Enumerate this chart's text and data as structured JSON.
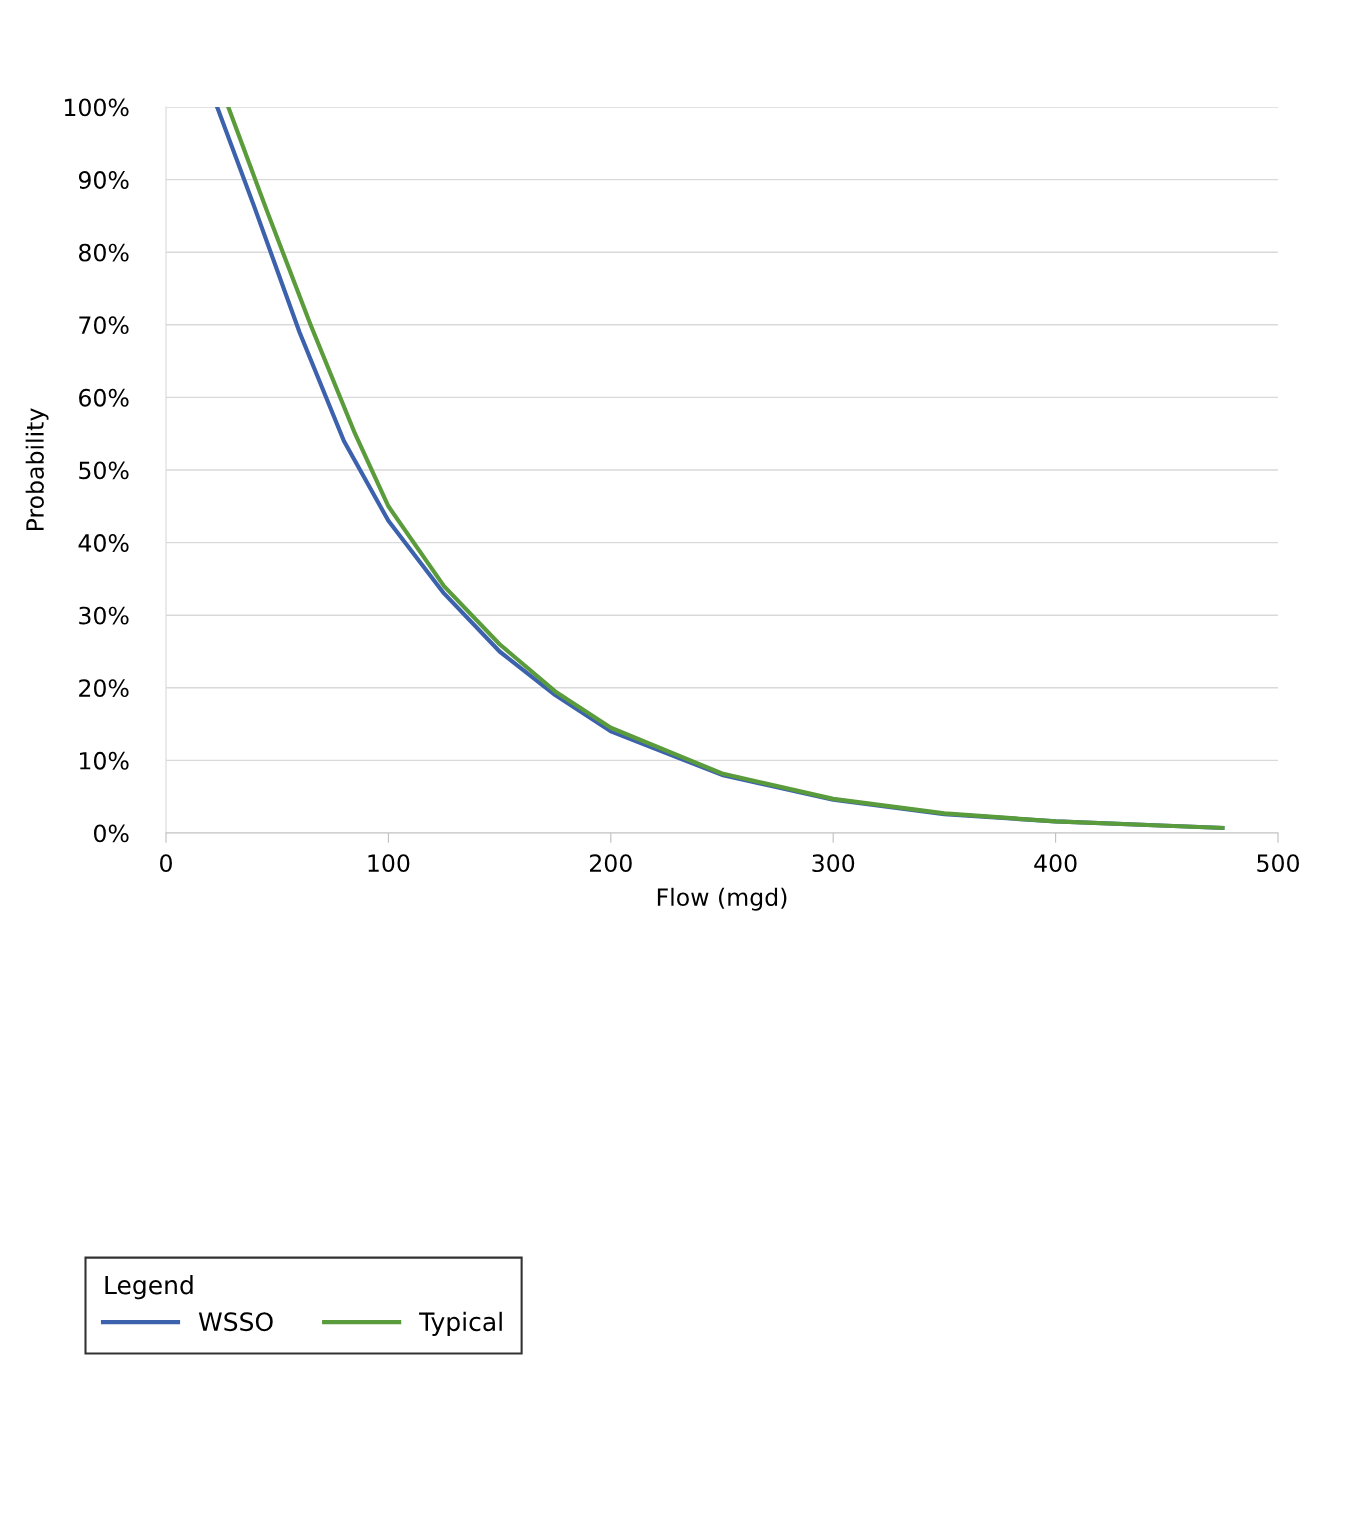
{
  "chart_data": {
    "type": "line",
    "xlabel": "Flow (mgd)",
    "ylabel": "Probability",
    "legend_title": "Legend",
    "series": [
      {
        "name": "WSSO",
        "color": "#3d62ad",
        "x": [
          23,
          40,
          60,
          80,
          100,
          125,
          150,
          175,
          200,
          250,
          300,
          350,
          400,
          450,
          475
        ],
        "values": [
          100,
          86,
          69,
          54,
          43,
          33,
          25,
          19,
          14,
          8,
          4.6,
          2.6,
          1.6,
          1.0,
          0.7
        ]
      },
      {
        "name": "Typical",
        "color": "#5a9b3c",
        "x": [
          28,
          45,
          65,
          85,
          100,
          125,
          150,
          175,
          200,
          250,
          300,
          350,
          400,
          450,
          475
        ],
        "values": [
          100,
          86,
          70,
          55,
          45,
          34,
          26,
          19.5,
          14.5,
          8.2,
          4.7,
          2.7,
          1.6,
          1.0,
          0.7
        ]
      }
    ],
    "xlim": [
      0,
      500
    ],
    "xticks": [
      0,
      100,
      200,
      300,
      400,
      500
    ],
    "ylim": [
      0,
      100
    ],
    "yticks": [
      {
        "value": 0,
        "label": "0%"
      },
      {
        "value": 10,
        "label": "10%"
      },
      {
        "value": 20,
        "label": "20%"
      },
      {
        "value": 30,
        "label": "30%"
      },
      {
        "value": 40,
        "label": "40%"
      },
      {
        "value": 50,
        "label": "50%"
      },
      {
        "value": 60,
        "label": "60%"
      },
      {
        "value": 70,
        "label": "70%"
      },
      {
        "value": 80,
        "label": "80%"
      },
      {
        "value": 90,
        "label": "90%"
      },
      {
        "value": 100,
        "label": "100%"
      }
    ],
    "grid": "y",
    "legend": "bottom left",
    "marker": "none",
    "line_style": "solid"
  }
}
